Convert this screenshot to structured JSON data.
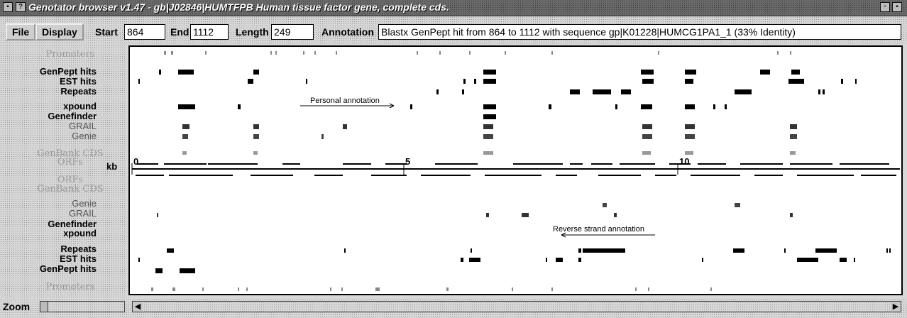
{
  "window": {
    "title": "Genotator browser v1.47 - gb|J02846|HUMTFPB Human tissue factor gene, complete cds.",
    "menu_icon": "window-menu-icon",
    "help_icon": "help-icon",
    "resize_icon": "resize-icon"
  },
  "toolbar": {
    "file_label": "File",
    "display_label": "Display",
    "start_label": "Start",
    "start_value": "864",
    "end_label": "End",
    "end_value": "1112",
    "length_label": "Length",
    "length_value": "249",
    "annotation_label": "Annotation",
    "annotation_value": "Blastx GenPept hit from 864 to 1112 with sequence gp|K01228|HUMCG1PA1_1 (33% Identity)"
  },
  "forward_tracks": [
    {
      "label": "Promoters",
      "style": "faint"
    },
    {
      "label": "GenPept hits",
      "style": "bold"
    },
    {
      "label": "EST hits",
      "style": "bold"
    },
    {
      "label": "Repeats",
      "style": "bold"
    },
    {
      "label": "xpound",
      "style": "bold"
    },
    {
      "label": "Genefinder",
      "style": "bold"
    },
    {
      "label": "GRAIL",
      "style": "mid"
    },
    {
      "label": "Genie",
      "style": "mid"
    },
    {
      "label": "GenBank CDS",
      "style": "faint"
    },
    {
      "label": "ORFs",
      "style": "faint"
    }
  ],
  "axis": {
    "unit_label": "kb",
    "ticks": [
      "0",
      "5",
      "10"
    ]
  },
  "reverse_tracks": [
    {
      "label": "ORFs",
      "style": "faint"
    },
    {
      "label": "GenBank CDS",
      "style": "faint"
    },
    {
      "label": "Genie",
      "style": "mid"
    },
    {
      "label": "GRAIL",
      "style": "mid"
    },
    {
      "label": "Genefinder",
      "style": "bold"
    },
    {
      "label": "xpound",
      "style": "bold"
    },
    {
      "label": "Repeats",
      "style": "bold"
    },
    {
      "label": "EST hits",
      "style": "bold"
    },
    {
      "label": "GenPept hits",
      "style": "bold"
    },
    {
      "label": "Promoters",
      "style": "faint"
    }
  ],
  "annotations": {
    "personal": "Personal annotation",
    "reverse": "Reverse strand annotation"
  },
  "zoom": {
    "label": "Zoom"
  },
  "scroll": {
    "left_arrow_icon": "scroll-left-icon",
    "right_arrow_icon": "scroll-right-icon"
  }
}
